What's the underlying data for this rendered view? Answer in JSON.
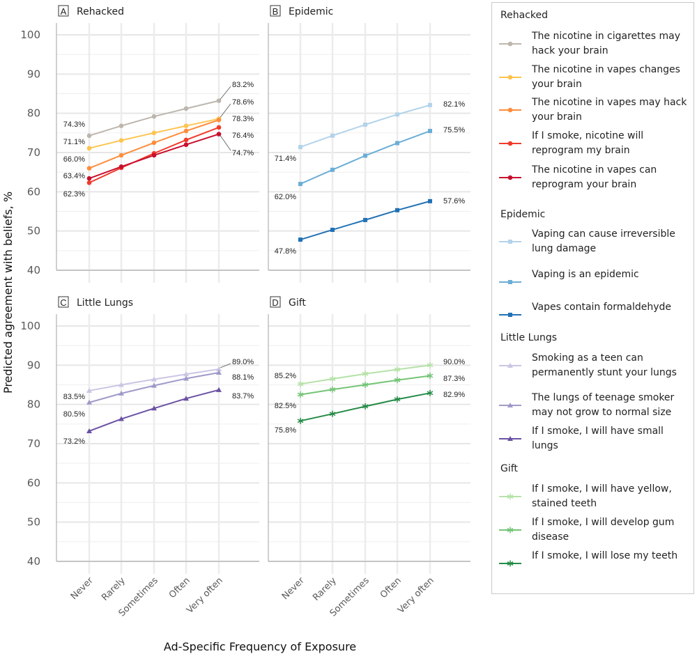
{
  "chart_data": [
    {
      "type": "line",
      "panel": "A",
      "title": "Rehacked",
      "marker": "circle",
      "categories": [
        "Never",
        "Rarely",
        "Sometimes",
        "Often",
        "Very often"
      ],
      "ylim": [
        40,
        100
      ],
      "yticks": [
        40,
        50,
        60,
        70,
        80,
        90,
        100
      ],
      "ylabel": "Predicted agreement with beliefs, %",
      "xlabel": "Ad-Specific Frequency of Exposure",
      "grid": true,
      "series": [
        {
          "name": "The nicotine in cigarettes may hack your brain",
          "color": "#bdb6ad",
          "values": [
            74.3,
            76.8,
            79.2,
            81.2,
            83.2
          ],
          "labels": [
            "74.3%",
            "83.2%"
          ]
        },
        {
          "name": "The nicotine in vapes changes your brain",
          "color": "#fec44f",
          "values": [
            71.1,
            73.1,
            75.0,
            76.8,
            78.6
          ],
          "labels": [
            "71.1%",
            "78.6%"
          ]
        },
        {
          "name": "The nicotine in vapes may hack your brain",
          "color": "#fd8d3c",
          "values": [
            66.0,
            69.3,
            72.5,
            75.5,
            78.3
          ],
          "labels": [
            "66.0%",
            "78.3%"
          ]
        },
        {
          "name": "If I smoke, nicotine will reprogram my brain",
          "color": "#ef3b2c",
          "values": [
            62.3,
            66.1,
            69.8,
            73.2,
            76.4
          ],
          "labels": [
            "62.3%",
            "76.4%"
          ]
        },
        {
          "name": "The nicotine in vapes can reprogram your brain",
          "color": "#c8102e",
          "values": [
            63.4,
            66.4,
            69.3,
            72.0,
            74.7
          ],
          "labels": [
            "63.4%",
            "74.7%"
          ]
        }
      ]
    },
    {
      "type": "line",
      "panel": "B",
      "title": "Epidemic",
      "marker": "square",
      "categories": [
        "Never",
        "Rarely",
        "Sometimes",
        "Often",
        "Very often"
      ],
      "ylim": [
        40,
        100
      ],
      "grid": true,
      "series": [
        {
          "name": "Vaping can cause irreversible lung damage",
          "color": "#b3d3ea",
          "values": [
            71.4,
            74.3,
            77.1,
            79.7,
            82.1
          ],
          "labels": [
            "71.4%",
            "82.1%"
          ]
        },
        {
          "name": "Vaping is an epidemic",
          "color": "#6baed6",
          "values": [
            62.0,
            65.6,
            69.2,
            72.4,
            75.5
          ],
          "labels": [
            "62.0%",
            "75.5%"
          ]
        },
        {
          "name": "Vapes contain formaldehyde",
          "color": "#2171b5",
          "values": [
            47.8,
            50.3,
            52.8,
            55.3,
            57.6
          ],
          "labels": [
            "47.8%",
            "57.6%"
          ]
        }
      ]
    },
    {
      "type": "line",
      "panel": "C",
      "title": "Little Lungs",
      "marker": "triangle",
      "categories": [
        "Never",
        "Rarely",
        "Sometimes",
        "Often",
        "Very often"
      ],
      "ylim": [
        40,
        100
      ],
      "yticks": [
        40,
        50,
        60,
        70,
        80,
        90,
        100
      ],
      "grid": true,
      "series": [
        {
          "name": "Smoking as a teen can permanently stunt your lungs",
          "color": "#cbc5e4",
          "values": [
            83.5,
            85.0,
            86.4,
            87.7,
            89.0
          ],
          "labels": [
            "83.5%",
            "89.0%"
          ]
        },
        {
          "name": "The lungs of teenage smoker may not grow to normal size",
          "color": "#9e9ac8",
          "values": [
            80.5,
            82.8,
            84.8,
            86.6,
            88.1
          ],
          "labels": [
            "80.5%",
            "88.1%"
          ]
        },
        {
          "name": "If I smoke, I will have small lungs",
          "color": "#6a51a3",
          "values": [
            73.2,
            76.3,
            79.0,
            81.5,
            83.7
          ],
          "labels": [
            "73.2%",
            "83.7%"
          ]
        }
      ]
    },
    {
      "type": "line",
      "panel": "D",
      "title": "Gift",
      "marker": "asterisk",
      "categories": [
        "Never",
        "Rarely",
        "Sometimes",
        "Often",
        "Very often"
      ],
      "ylim": [
        40,
        100
      ],
      "grid": true,
      "series": [
        {
          "name": "If I smoke, I will have yellow, stained teeth",
          "color": "#b5e2a8",
          "values": [
            85.2,
            86.5,
            87.8,
            88.9,
            90.0
          ],
          "labels": [
            "85.2%",
            "90.0%"
          ]
        },
        {
          "name": "If I smoke, I will develop gum disease",
          "color": "#74c476",
          "values": [
            82.5,
            83.8,
            85.0,
            86.2,
            87.3
          ],
          "labels": [
            "82.5%",
            "87.3%"
          ]
        },
        {
          "name": "If I smoke, I will lose my teeth",
          "color": "#238b45",
          "values": [
            75.8,
            77.6,
            79.5,
            81.3,
            82.9
          ],
          "labels": [
            "75.8%",
            "82.9%"
          ]
        }
      ]
    }
  ],
  "axes": {
    "ylabel": "Predicted agreement with beliefs, %",
    "xlabel": "Ad-Specific Frequency of Exposure"
  },
  "legend": {
    "placement": "right"
  }
}
